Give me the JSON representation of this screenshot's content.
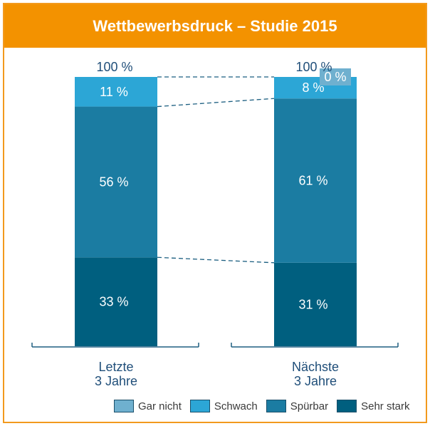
{
  "chart_data": {
    "type": "bar",
    "stacked": true,
    "title": "Wettbewerbsdruck – Studie 2015",
    "categories": [
      "Letzte\n3 Jahre",
      "Nächste\n3 Jahre"
    ],
    "category_lines": [
      [
        "Letzte",
        "3 Jahre"
      ],
      [
        "Nächste",
        "3 Jahre"
      ]
    ],
    "totals": [
      "100 %",
      "100 %"
    ],
    "series": [
      {
        "name": "Sehr stark",
        "values": [
          33,
          31
        ],
        "labels": [
          "33 %",
          "31 %"
        ],
        "color": "#005F7F"
      },
      {
        "name": "Spürbar",
        "values": [
          56,
          61
        ],
        "labels": [
          "56 %",
          "61 %"
        ],
        "color": "#1B7CA2"
      },
      {
        "name": "Schwach",
        "values": [
          11,
          8
        ],
        "labels": [
          "11 %",
          "8 %"
        ],
        "color": "#2CA6D6"
      },
      {
        "name": "Gar nicht",
        "values": [
          0,
          0
        ],
        "labels": [
          "",
          "0 %"
        ],
        "color": "#6FB0CF"
      }
    ],
    "legend_order": [
      "Gar nicht",
      "Schwach",
      "Spürbar",
      "Sehr stark"
    ],
    "ylim": [
      0,
      100
    ],
    "legend_position": "bottom-right",
    "grid": false
  }
}
